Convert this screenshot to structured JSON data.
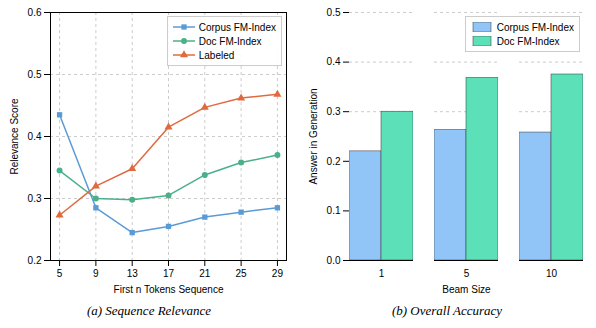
{
  "chart_data": [
    {
      "type": "line",
      "caption": "(a) Sequence Relevance",
      "xlabel": "First n Tokens Sequence",
      "ylabel": "Relevance Score",
      "x": [
        5,
        9,
        13,
        17,
        21,
        25,
        29
      ],
      "series": [
        {
          "name": "Corpus FM-Index",
          "color": "#5b9bd5",
          "marker": "square",
          "values": [
            0.435,
            0.285,
            0.245,
            0.255,
            0.27,
            0.278,
            0.285
          ]
        },
        {
          "name": "Doc FM-Index",
          "color": "#4ab08a",
          "marker": "circle",
          "values": [
            0.345,
            0.3,
            0.298,
            0.305,
            0.338,
            0.358,
            0.37
          ]
        },
        {
          "name": "Labeled",
          "color": "#e06a3e",
          "marker": "triangle",
          "values": [
            0.273,
            0.32,
            0.348,
            0.415,
            0.447,
            0.462,
            0.468
          ]
        }
      ],
      "xlim": [
        4,
        30
      ],
      "xticks": [
        5,
        9,
        13,
        17,
        21,
        25,
        29
      ],
      "ylim": [
        0.2,
        0.6
      ],
      "yticks": [
        0.2,
        0.3,
        0.4,
        0.5,
        0.6
      ],
      "grid": true,
      "legend": "upper right"
    },
    {
      "type": "bar",
      "caption": "(b) Overall Accuracy",
      "xlabel": "Beam Size",
      "ylabel": "Answer in Generation",
      "categories": [
        "1",
        "5",
        "10"
      ],
      "series": [
        {
          "name": "Corpus FM-Index",
          "color": "#92c5f7",
          "values": [
            0.22,
            0.263,
            0.258
          ]
        },
        {
          "name": "Doc FM-Index",
          "color": "#5ce0b8",
          "values": [
            0.3,
            0.368,
            0.375
          ]
        }
      ],
      "ylim": [
        0.0,
        0.5
      ],
      "yticks": [
        {
          "value": 0,
          "label": "0.0"
        },
        0.1,
        0.2,
        0.3,
        0.4,
        0.5
      ],
      "grid": "y",
      "legend": "upper right"
    }
  ]
}
